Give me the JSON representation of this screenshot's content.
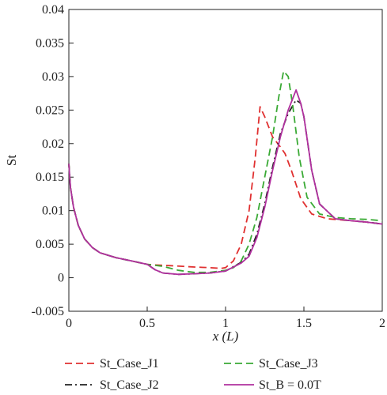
{
  "chart_data": {
    "type": "line",
    "xlabel": "x (L)",
    "ylabel": "St",
    "xlim": [
      0,
      2
    ],
    "ylim": [
      -0.005,
      0.04
    ],
    "x_ticks": [
      "0",
      "0.5",
      "1",
      "1.5",
      "2"
    ],
    "y_ticks": [
      "-0.005",
      "0",
      "0.005",
      "0.01",
      "0.015",
      "0.02",
      "0.025",
      "0.03",
      "0.035",
      "0.04"
    ],
    "grid": false,
    "legend_position": "bottom",
    "series": [
      {
        "name": "St_Case_J1",
        "color": "#e03030",
        "style": "dashed",
        "points": [
          [
            0.0,
            0.017
          ],
          [
            0.01,
            0.0135
          ],
          [
            0.03,
            0.0105
          ],
          [
            0.06,
            0.0078
          ],
          [
            0.1,
            0.0058
          ],
          [
            0.15,
            0.0045
          ],
          [
            0.2,
            0.0037
          ],
          [
            0.3,
            0.003
          ],
          [
            0.4,
            0.0025
          ],
          [
            0.5,
            0.002
          ],
          [
            0.55,
            0.0019
          ],
          [
            0.65,
            0.0018
          ],
          [
            0.8,
            0.0016
          ],
          [
            0.9,
            0.0015
          ],
          [
            0.97,
            0.0014
          ],
          [
            1.0,
            0.0015
          ],
          [
            1.05,
            0.0025
          ],
          [
            1.1,
            0.005
          ],
          [
            1.15,
            0.01
          ],
          [
            1.19,
            0.018
          ],
          [
            1.22,
            0.0255
          ],
          [
            1.25,
            0.024
          ],
          [
            1.3,
            0.021
          ],
          [
            1.35,
            0.0195
          ],
          [
            1.38,
            0.0185
          ],
          [
            1.42,
            0.016
          ],
          [
            1.48,
            0.0118
          ],
          [
            1.55,
            0.0095
          ],
          [
            1.65,
            0.0088
          ],
          [
            1.8,
            0.0085
          ],
          [
            1.9,
            0.0083
          ],
          [
            2.0,
            0.008
          ]
        ]
      },
      {
        "name": "St_Case_J2",
        "color": "#222222",
        "style": "dashdot",
        "points": [
          [
            0.0,
            0.017
          ],
          [
            0.01,
            0.0135
          ],
          [
            0.03,
            0.0105
          ],
          [
            0.06,
            0.0078
          ],
          [
            0.1,
            0.0058
          ],
          [
            0.15,
            0.0045
          ],
          [
            0.2,
            0.0037
          ],
          [
            0.3,
            0.003
          ],
          [
            0.4,
            0.0025
          ],
          [
            0.5,
            0.002
          ],
          [
            0.55,
            0.0012
          ],
          [
            0.6,
            0.0007
          ],
          [
            0.7,
            0.0005
          ],
          [
            0.8,
            0.0006
          ],
          [
            0.9,
            0.0007
          ],
          [
            1.0,
            0.001
          ],
          [
            1.1,
            0.0023
          ],
          [
            1.15,
            0.0035
          ],
          [
            1.2,
            0.0065
          ],
          [
            1.25,
            0.011
          ],
          [
            1.3,
            0.0165
          ],
          [
            1.35,
            0.0215
          ],
          [
            1.4,
            0.0245
          ],
          [
            1.45,
            0.0265
          ],
          [
            1.48,
            0.026
          ],
          [
            1.5,
            0.024
          ],
          [
            1.55,
            0.016
          ],
          [
            1.6,
            0.011
          ],
          [
            1.7,
            0.0088
          ],
          [
            1.8,
            0.0085
          ],
          [
            1.9,
            0.0083
          ],
          [
            2.0,
            0.008
          ]
        ]
      },
      {
        "name": "St_Case_J3",
        "color": "#3aaa35",
        "style": "dashed",
        "points": [
          [
            0.0,
            0.017
          ],
          [
            0.01,
            0.0135
          ],
          [
            0.03,
            0.0105
          ],
          [
            0.06,
            0.0078
          ],
          [
            0.1,
            0.0058
          ],
          [
            0.15,
            0.0045
          ],
          [
            0.2,
            0.0037
          ],
          [
            0.3,
            0.003
          ],
          [
            0.4,
            0.0025
          ],
          [
            0.5,
            0.002
          ],
          [
            0.6,
            0.0017
          ],
          [
            0.7,
            0.0011
          ],
          [
            0.8,
            0.0008
          ],
          [
            0.9,
            0.0008
          ],
          [
            1.0,
            0.0011
          ],
          [
            1.05,
            0.0015
          ],
          [
            1.1,
            0.0025
          ],
          [
            1.15,
            0.005
          ],
          [
            1.2,
            0.009
          ],
          [
            1.25,
            0.015
          ],
          [
            1.3,
            0.021
          ],
          [
            1.34,
            0.027
          ],
          [
            1.37,
            0.0308
          ],
          [
            1.4,
            0.03
          ],
          [
            1.43,
            0.0255
          ],
          [
            1.47,
            0.018
          ],
          [
            1.52,
            0.012
          ],
          [
            1.6,
            0.0095
          ],
          [
            1.7,
            0.009
          ],
          [
            1.8,
            0.0088
          ],
          [
            1.9,
            0.0087
          ],
          [
            2.0,
            0.0085
          ]
        ]
      },
      {
        "name": "St_B = 0.0T",
        "color": "#b0309e",
        "style": "solid",
        "points": [
          [
            0.0,
            0.017
          ],
          [
            0.01,
            0.0135
          ],
          [
            0.03,
            0.0105
          ],
          [
            0.06,
            0.0078
          ],
          [
            0.1,
            0.0058
          ],
          [
            0.15,
            0.0045
          ],
          [
            0.2,
            0.0037
          ],
          [
            0.3,
            0.003
          ],
          [
            0.4,
            0.0025
          ],
          [
            0.5,
            0.002
          ],
          [
            0.55,
            0.0012
          ],
          [
            0.6,
            0.0007
          ],
          [
            0.7,
            0.0005
          ],
          [
            0.8,
            0.0006
          ],
          [
            0.9,
            0.0007
          ],
          [
            1.0,
            0.001
          ],
          [
            1.1,
            0.0022
          ],
          [
            1.15,
            0.0032
          ],
          [
            1.2,
            0.006
          ],
          [
            1.25,
            0.0105
          ],
          [
            1.3,
            0.016
          ],
          [
            1.35,
            0.021
          ],
          [
            1.4,
            0.025
          ],
          [
            1.45,
            0.028
          ],
          [
            1.48,
            0.026
          ],
          [
            1.5,
            0.024
          ],
          [
            1.55,
            0.016
          ],
          [
            1.6,
            0.011
          ],
          [
            1.7,
            0.0088
          ],
          [
            1.8,
            0.0085
          ],
          [
            1.9,
            0.0083
          ],
          [
            2.0,
            0.008
          ]
        ]
      }
    ]
  }
}
